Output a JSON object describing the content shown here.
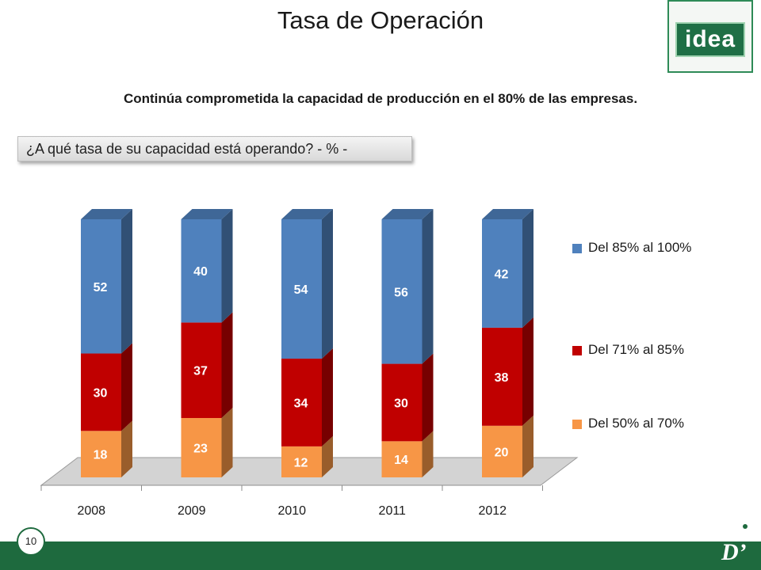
{
  "header": {
    "title": "Tasa de Operación",
    "logo_text": "idea"
  },
  "subtitle": "Continúa comprometida la capacidad de producción en el 80% de las empresas.",
  "question": "¿A qué tasa de su capacidad está operando? - % -",
  "footer": {
    "page_number": "10",
    "brand_mark": "D’"
  },
  "colors": {
    "blue": "#4f81bd",
    "red": "#c00000",
    "orange": "#f79646",
    "footer_green": "#1e6a3e"
  },
  "chart_data": {
    "type": "bar",
    "stacked": true,
    "three_d": true,
    "categories": [
      "2008",
      "2009",
      "2010",
      "2011",
      "2012"
    ],
    "series": [
      {
        "name": "Del 50% al 70%",
        "values": [
          18,
          23,
          12,
          14,
          20
        ],
        "color": "#f79646"
      },
      {
        "name": "Del 71% al 85%",
        "values": [
          30,
          37,
          34,
          30,
          38
        ],
        "color": "#c00000"
      },
      {
        "name": "Del 85% al 100%",
        "values": [
          52,
          40,
          54,
          56,
          42
        ],
        "color": "#4f81bd"
      }
    ],
    "title": "",
    "xlabel": "",
    "ylabel": "",
    "ylim": [
      0,
      100
    ],
    "grid": false,
    "legend": "right"
  }
}
